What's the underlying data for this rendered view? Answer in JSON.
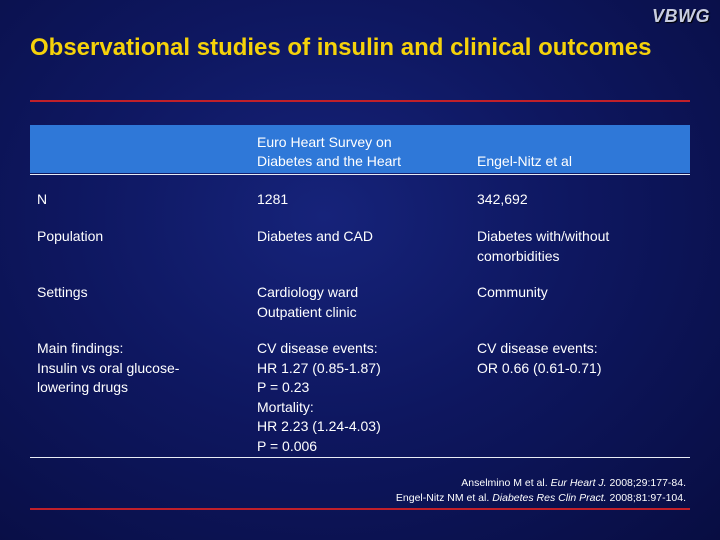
{
  "logo": "VBWG",
  "title": "Observational studies of insulin and clinical outcomes",
  "table": {
    "headers": [
      "",
      "Euro Heart Survey on Diabetes and the Heart",
      "Engel-Nitz et al"
    ],
    "header_lines": {
      "col2": [
        "Euro Heart Survey on",
        "Diabetes and the Heart"
      ],
      "col3": [
        "Engel-Nitz et al"
      ]
    },
    "rows": [
      {
        "label": [
          "N"
        ],
        "col2": [
          "1281"
        ],
        "col3": [
          "342,692"
        ]
      },
      {
        "label": [
          "Population"
        ],
        "col2": [
          "Diabetes and CAD"
        ],
        "col3": [
          "Diabetes with/without",
          "comorbidities"
        ]
      },
      {
        "label": [
          "Settings"
        ],
        "col2": [
          "Cardiology ward",
          "Outpatient clinic"
        ],
        "col3": [
          "Community"
        ]
      },
      {
        "label": [
          "Main findings:",
          "Insulin vs oral glucose-",
          "lowering drugs"
        ],
        "col2": [
          "CV disease events:",
          "HR 1.27 (0.85-1.87)",
          "P = 0.23",
          "Mortality:",
          "HR 2.23 (1.24-4.03)",
          "P = 0.006"
        ],
        "col3": [
          "CV disease events:",
          "OR 0.66 (0.61-0.71)"
        ]
      }
    ]
  },
  "references": [
    {
      "authors": "Anselmino M et al.",
      "journal": "Eur Heart J.",
      "details": "2008;29:177-84."
    },
    {
      "authors": "Engel-Nitz NM et al.",
      "journal": "Diabetes Res Clin Pract.",
      "details": "2008;81:97-104."
    }
  ],
  "colors": {
    "title": "#f5d20a",
    "header_band": "#2f78d8",
    "rule": "#c0202a",
    "background": "#0e1760"
  }
}
